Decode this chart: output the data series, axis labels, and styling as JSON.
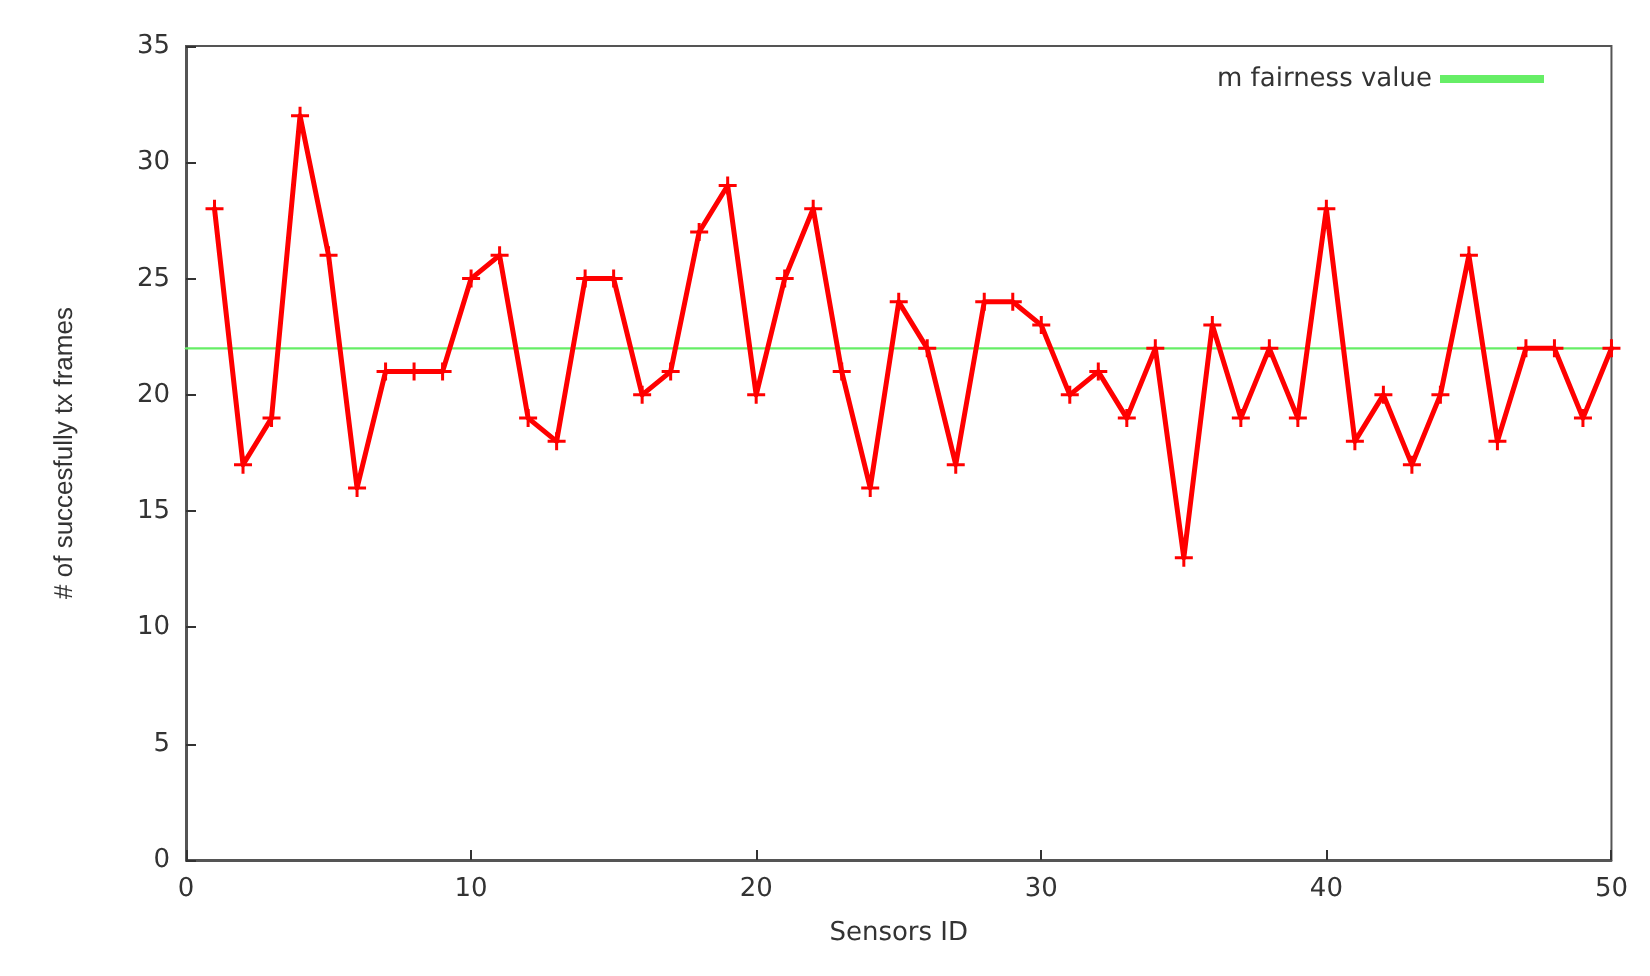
{
  "chart_data": {
    "type": "line",
    "xlabel": "Sensors ID",
    "ylabel": "# of succesfully tx frames",
    "xlim": [
      0,
      50
    ],
    "xticks": [
      0,
      10,
      20,
      30,
      40,
      50
    ],
    "ylim": [
      0,
      35
    ],
    "yticks": [
      0,
      5,
      10,
      15,
      20,
      25,
      30,
      35
    ],
    "grid": false,
    "legend": "top right",
    "marker": "cross",
    "line_style": "solid",
    "series": [
      {
        "color": "#ff0000",
        "x": [
          1,
          2,
          3,
          4,
          5,
          6,
          7,
          8,
          9,
          10,
          11,
          12,
          13,
          14,
          15,
          16,
          17,
          18,
          19,
          20,
          21,
          22,
          23,
          24,
          25,
          26,
          27,
          28,
          29,
          30,
          31,
          32,
          33,
          34,
          35,
          36,
          37,
          38,
          39,
          40,
          41,
          42,
          43,
          44,
          45,
          46,
          47,
          48,
          49,
          50
        ],
        "values": [
          28,
          17,
          19,
          32,
          26,
          16,
          21,
          21,
          21,
          25,
          26,
          19,
          18,
          25,
          25,
          20,
          21,
          27,
          29,
          20,
          25,
          28,
          21,
          16,
          24,
          22,
          17,
          24,
          24,
          23,
          20,
          21,
          19,
          22,
          13,
          23,
          19,
          22,
          19,
          28,
          18,
          20,
          17,
          20,
          26,
          18,
          22,
          22,
          19,
          22
        ]
      },
      {
        "name": "m fairness value",
        "color": "#66ee66",
        "marker": "none",
        "x": [
          0,
          50
        ],
        "values": [
          22,
          22
        ]
      }
    ]
  }
}
